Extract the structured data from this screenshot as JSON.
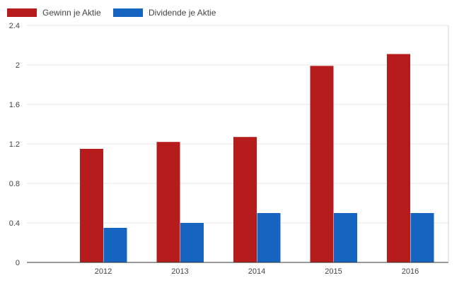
{
  "chart_data": {
    "type": "bar",
    "categories": [
      "2012",
      "2013",
      "2014",
      "2015",
      "2016"
    ],
    "series": [
      {
        "name": "Gewinn je Aktie",
        "color": "#b71c1c",
        "values": [
          1.15,
          1.22,
          1.27,
          1.99,
          2.11
        ]
      },
      {
        "name": "Dividende je Aktie",
        "color": "#1565c0",
        "values": [
          0.35,
          0.4,
          0.5,
          0.5,
          0.5
        ]
      }
    ],
    "ylim": [
      0,
      2.4
    ],
    "yticks": [
      "0",
      "0.4",
      "0.8",
      "1.2",
      "1.6",
      "2",
      "2.4"
    ],
    "title": "",
    "xlabel": "",
    "ylabel": "",
    "grid": true,
    "legend_position": "top-left"
  }
}
